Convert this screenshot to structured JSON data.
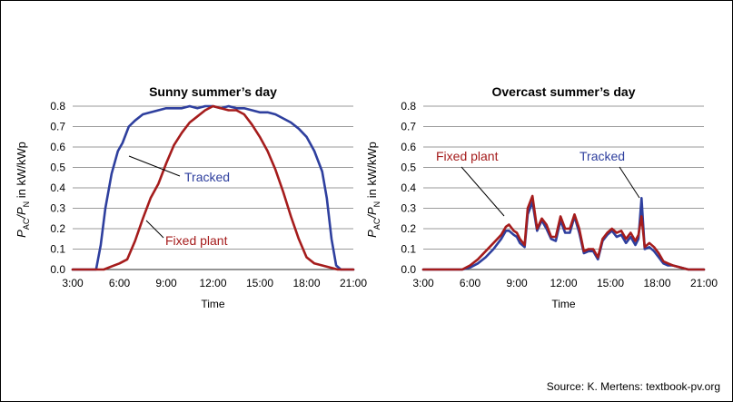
{
  "source": "Source: K. Mertens: textbook-pv.org",
  "chart_data": [
    {
      "type": "line",
      "title": "Sunny summer’s day",
      "xlabel": "Time",
      "ylabel_main": "P",
      "ylabel_sub1": "AC",
      "ylabel_mid": "/P",
      "ylabel_sub2": "N",
      "ylabel_tail": " in kW/kWp",
      "xlim": [
        3,
        21
      ],
      "ylim": [
        0,
        0.8
      ],
      "grid": true,
      "x_tick_labels": [
        "3:00",
        "6:00",
        "9:00",
        "12:00",
        "15:00",
        "18:00",
        "21:00"
      ],
      "y_tick_labels": [
        "0.0",
        "0.1",
        "0.2",
        "0.3",
        "0.4",
        "0.5",
        "0.6",
        "0.7",
        "0.8"
      ],
      "series": [
        {
          "name": "Tracked",
          "color": "#2E3F9E",
          "x": [
            3.0,
            4.5,
            4.8,
            5.1,
            5.5,
            5.9,
            6.2,
            6.6,
            7.0,
            7.5,
            8.0,
            8.5,
            9.0,
            9.5,
            10.0,
            10.5,
            11.0,
            11.5,
            12.0,
            12.5,
            13.0,
            13.5,
            14.0,
            14.5,
            15.0,
            15.5,
            16.0,
            16.5,
            17.0,
            17.5,
            18.0,
            18.5,
            19.0,
            19.3,
            19.6,
            19.9,
            20.2,
            20.5,
            21.0
          ],
          "y": [
            0.0,
            0.0,
            0.12,
            0.3,
            0.47,
            0.58,
            0.62,
            0.7,
            0.73,
            0.76,
            0.77,
            0.78,
            0.79,
            0.79,
            0.79,
            0.8,
            0.79,
            0.8,
            0.8,
            0.79,
            0.8,
            0.79,
            0.79,
            0.78,
            0.77,
            0.77,
            0.76,
            0.74,
            0.72,
            0.69,
            0.65,
            0.58,
            0.48,
            0.35,
            0.15,
            0.02,
            0.0,
            0.0,
            0.0
          ]
        },
        {
          "name": "Fixed plant",
          "color": "#A51C1C",
          "x": [
            3.0,
            5.0,
            5.5,
            6.0,
            6.5,
            7.0,
            7.5,
            8.0,
            8.5,
            9.0,
            9.5,
            10.0,
            10.5,
            11.0,
            11.5,
            12.0,
            12.5,
            13.0,
            13.5,
            14.0,
            14.5,
            15.0,
            15.5,
            16.0,
            16.5,
            17.0,
            17.5,
            18.0,
            18.5,
            19.0,
            19.5,
            20.0,
            21.0
          ],
          "y": [
            0.0,
            0.0,
            0.015,
            0.03,
            0.05,
            0.14,
            0.25,
            0.35,
            0.42,
            0.52,
            0.61,
            0.67,
            0.72,
            0.75,
            0.78,
            0.8,
            0.79,
            0.78,
            0.78,
            0.76,
            0.71,
            0.65,
            0.58,
            0.49,
            0.38,
            0.26,
            0.15,
            0.06,
            0.03,
            0.02,
            0.01,
            0.0,
            0.0
          ]
        }
      ],
      "annotations": [
        {
          "text": "Tracked",
          "color": "#2E3F9E"
        },
        {
          "text": "Fixed plant",
          "color": "#A51C1C"
        }
      ]
    },
    {
      "type": "line",
      "title": "Overcast summer’s day",
      "xlabel": "Time",
      "ylabel_main": "P",
      "ylabel_sub1": "AC",
      "ylabel_mid": "/P",
      "ylabel_sub2": "N",
      "ylabel_tail": " in kW/kWp",
      "xlim": [
        3,
        21
      ],
      "ylim": [
        0,
        0.8
      ],
      "grid": true,
      "x_tick_labels": [
        "3:00",
        "6:00",
        "9:00",
        "12:00",
        "15:00",
        "18:00",
        "21:00"
      ],
      "y_tick_labels": [
        "0.0",
        "0.1",
        "0.2",
        "0.3",
        "0.4",
        "0.5",
        "0.6",
        "0.7",
        "0.8"
      ],
      "series": [
        {
          "name": "Tracked",
          "color": "#2E3F9E",
          "x": [
            3.0,
            5.5,
            6.0,
            6.5,
            7.0,
            7.5,
            8.0,
            8.3,
            8.5,
            8.8,
            9.0,
            9.2,
            9.5,
            9.7,
            10.0,
            10.3,
            10.6,
            10.9,
            11.2,
            11.5,
            11.8,
            12.1,
            12.4,
            12.7,
            13.0,
            13.3,
            13.6,
            13.9,
            14.2,
            14.5,
            14.8,
            15.1,
            15.4,
            15.7,
            16.0,
            16.3,
            16.6,
            16.8,
            17.0,
            17.2,
            17.5,
            17.8,
            18.1,
            18.4,
            18.7,
            19.0,
            19.5,
            20.0,
            21.0
          ],
          "y": [
            0.0,
            0.0,
            0.01,
            0.03,
            0.06,
            0.1,
            0.15,
            0.19,
            0.19,
            0.17,
            0.16,
            0.13,
            0.11,
            0.27,
            0.33,
            0.19,
            0.24,
            0.2,
            0.15,
            0.14,
            0.24,
            0.18,
            0.18,
            0.26,
            0.18,
            0.08,
            0.09,
            0.09,
            0.05,
            0.14,
            0.17,
            0.19,
            0.16,
            0.17,
            0.13,
            0.16,
            0.12,
            0.15,
            0.35,
            0.1,
            0.11,
            0.09,
            0.06,
            0.03,
            0.02,
            0.02,
            0.01,
            0.0,
            0.0
          ]
        },
        {
          "name": "Fixed plant",
          "color": "#A51C1C",
          "x": [
            3.0,
            5.5,
            6.0,
            6.5,
            7.0,
            7.5,
            8.0,
            8.3,
            8.5,
            8.8,
            9.0,
            9.2,
            9.5,
            9.7,
            10.0,
            10.3,
            10.6,
            10.9,
            11.2,
            11.5,
            11.8,
            12.1,
            12.4,
            12.7,
            13.0,
            13.3,
            13.6,
            13.9,
            14.2,
            14.5,
            14.8,
            15.1,
            15.4,
            15.7,
            16.0,
            16.3,
            16.6,
            16.8,
            17.0,
            17.2,
            17.5,
            17.8,
            18.1,
            18.4,
            18.7,
            19.0,
            19.5,
            20.0,
            21.0
          ],
          "y": [
            0.0,
            0.0,
            0.02,
            0.05,
            0.09,
            0.13,
            0.17,
            0.21,
            0.22,
            0.19,
            0.18,
            0.15,
            0.12,
            0.3,
            0.36,
            0.2,
            0.25,
            0.22,
            0.16,
            0.16,
            0.26,
            0.2,
            0.2,
            0.27,
            0.2,
            0.09,
            0.1,
            0.1,
            0.06,
            0.15,
            0.18,
            0.2,
            0.18,
            0.19,
            0.15,
            0.18,
            0.14,
            0.17,
            0.26,
            0.11,
            0.13,
            0.11,
            0.08,
            0.04,
            0.03,
            0.02,
            0.01,
            0.0,
            0.0
          ]
        }
      ],
      "annotations": [
        {
          "text": "Fixed plant",
          "color": "#A51C1C"
        },
        {
          "text": "Tracked",
          "color": "#2E3F9E"
        }
      ]
    }
  ]
}
